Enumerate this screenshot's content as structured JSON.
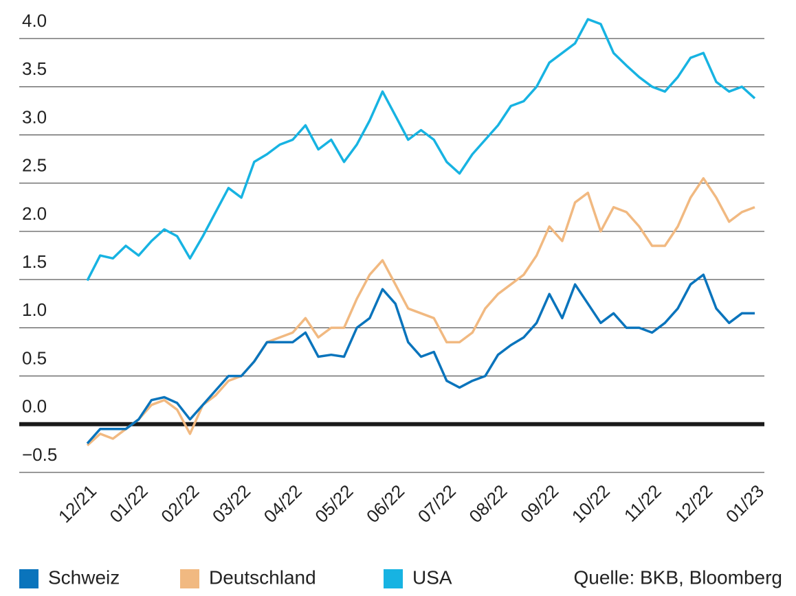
{
  "chart_data": {
    "type": "line",
    "categories": [
      "12/21",
      null,
      null,
      null,
      "01/22",
      null,
      null,
      null,
      "02/22",
      null,
      null,
      null,
      "03/22",
      null,
      null,
      null,
      "04/22",
      null,
      null,
      null,
      "05/22",
      null,
      null,
      null,
      "06/22",
      null,
      null,
      null,
      "07/22",
      null,
      null,
      null,
      "08/22",
      null,
      null,
      null,
      "09/22",
      null,
      null,
      null,
      "10/22",
      null,
      null,
      null,
      "11/22",
      null,
      null,
      null,
      "12/22",
      null,
      null,
      null,
      "01/23"
    ],
    "series": [
      {
        "name": "Schweiz",
        "color": "#0a74bc",
        "values": [
          -0.2,
          -0.05,
          -0.05,
          -0.05,
          0.05,
          0.25,
          0.28,
          0.22,
          0.05,
          0.2,
          0.35,
          0.5,
          0.5,
          0.65,
          0.85,
          0.85,
          0.85,
          0.95,
          0.7,
          0.72,
          0.7,
          1.0,
          1.1,
          1.4,
          1.25,
          0.85,
          0.7,
          0.75,
          0.45,
          0.38,
          0.45,
          0.5,
          0.72,
          0.82,
          0.9,
          1.05,
          1.35,
          1.1,
          1.45,
          1.25,
          1.05,
          1.15,
          1.0,
          1.0,
          0.95,
          1.05,
          1.2,
          1.45,
          1.55,
          1.2,
          1.05,
          1.15,
          1.15
        ]
      },
      {
        "name": "Deutschland",
        "color": "#f1b981",
        "values": [
          -0.22,
          -0.1,
          -0.15,
          -0.05,
          0.05,
          0.2,
          0.25,
          0.15,
          -0.1,
          0.2,
          0.3,
          0.45,
          0.5,
          0.65,
          0.85,
          0.9,
          0.95,
          1.1,
          0.9,
          1.0,
          1.0,
          1.3,
          1.55,
          1.7,
          1.45,
          1.2,
          1.15,
          1.1,
          0.85,
          0.85,
          0.95,
          1.2,
          1.35,
          1.45,
          1.55,
          1.75,
          2.05,
          1.9,
          2.3,
          2.4,
          2.0,
          2.25,
          2.2,
          2.05,
          1.85,
          1.85,
          2.05,
          2.35,
          2.55,
          2.35,
          2.1,
          2.2,
          2.25
        ]
      },
      {
        "name": "USA",
        "color": "#17b3e2",
        "values": [
          1.49,
          1.75,
          1.72,
          1.85,
          1.75,
          1.9,
          2.02,
          1.95,
          1.72,
          1.95,
          2.2,
          2.45,
          2.35,
          2.72,
          2.8,
          2.9,
          2.95,
          3.1,
          2.85,
          2.95,
          2.72,
          2.9,
          3.15,
          3.45,
          3.2,
          2.95,
          3.05,
          2.95,
          2.72,
          2.6,
          2.8,
          2.95,
          3.1,
          3.3,
          3.35,
          3.5,
          3.75,
          3.85,
          3.95,
          4.2,
          4.15,
          3.85,
          3.72,
          3.6,
          3.5,
          3.45,
          3.6,
          3.8,
          3.85,
          3.55,
          3.45,
          3.5,
          3.38
        ]
      }
    ],
    "ylim": [
      -0.5,
      4.25
    ],
    "yticks": [
      {
        "value": -0.5,
        "label": "−0.5"
      },
      {
        "value": 0,
        "label": "0.0"
      },
      0.5,
      {
        "value": 1,
        "label": "1.0"
      },
      1.5,
      {
        "value": 2,
        "label": "2.0"
      },
      2.5,
      {
        "value": 3,
        "label": "3.0"
      },
      3.5,
      {
        "value": 4,
        "label": "4.0"
      }
    ],
    "grid": true,
    "source": "Quelle: BKB, Bloomberg"
  }
}
